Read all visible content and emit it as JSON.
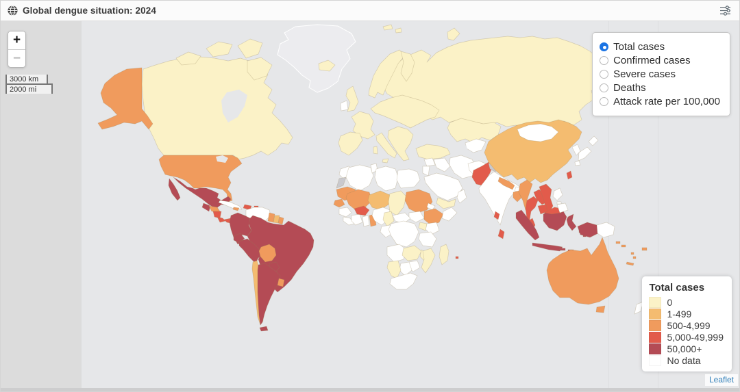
{
  "header": {
    "title": "Global dengue situation: 2024",
    "globe_icon": "globe-icon",
    "settings_icon": "sliders-icon"
  },
  "zoom_control": {
    "zoom_in": "+",
    "zoom_out": "−",
    "zoom_out_disabled": true
  },
  "scale_control": {
    "km": "3000 km",
    "mi": "2000 mi"
  },
  "layer_control": {
    "options": [
      {
        "label": "Total cases",
        "selected": true
      },
      {
        "label": "Confirmed cases",
        "selected": false
      },
      {
        "label": "Severe cases",
        "selected": false
      },
      {
        "label": "Deaths",
        "selected": false
      },
      {
        "label": "Attack rate per 100,000",
        "selected": false
      }
    ],
    "accent_color": "#1B74E4"
  },
  "legend": {
    "title": "Total cases",
    "items": [
      {
        "label": "0",
        "class": "c0"
      },
      {
        "label": "1-499",
        "class": "c1"
      },
      {
        "label": "500-4,999",
        "class": "c2"
      },
      {
        "label": "5,000-49,999",
        "class": "c3"
      },
      {
        "label": "50,000+",
        "class": "c4"
      },
      {
        "label": "No data",
        "class": "nodata"
      }
    ]
  },
  "attribution": {
    "label": "Leaflet"
  },
  "map": {
    "colors": {
      "c0": "#FBF2C7",
      "c1": "#F4BC70",
      "c2": "#F09B5D",
      "c3": "#E25B4B",
      "c4": "#B44B55",
      "nodata": "#FFFFFF",
      "basemap": "#ECECEF",
      "disputed": "#C9C9CE",
      "water": "#E6E7E9",
      "ocean": "#E6E7E9",
      "outside": "#DCDCDC"
    },
    "region_classes": {
      "greenland": "basemap",
      "hudson-bay": "water",
      "great-lakes": "water",
      "caspian-sea": "water",
      "black-sea": "water",
      "russia": "c0",
      "canada": "c0",
      "arctic-island-1": "c0",
      "arctic-island-2": "c0",
      "arctic-island-3": "c0",
      "baffin-island": "c0",
      "svalbard-1": "c0",
      "svalbard-2": "c0",
      "novaya-zemlya": "c0",
      "alaska": "c2",
      "usa": "c2",
      "mexico": "c4",
      "baja-california": "c4",
      "guatemala": "c4",
      "honduras": "c2",
      "nicaragua": "c3",
      "costa-rica": "c3",
      "panama": "c3",
      "cuba": "nodata",
      "hispaniola": "c3",
      "jamaica": "c2",
      "puerto-rico": "c3",
      "trinidad": "c3",
      "colombia": "c4",
      "venezuela": "nodata",
      "guyana": "c2",
      "suriname": "c1",
      "french-guiana": "c2",
      "ecuador": "c4",
      "peru": "c4",
      "brazil": "c4",
      "bolivia": "c2",
      "paraguay": "c4",
      "chile": "c1",
      "argentina": "c4",
      "uruguay": "c2",
      "tierra-del-fuego": "c4",
      "iceland": "c0",
      "uk": "c0",
      "ireland": "nodata",
      "scandinavia": "c0",
      "finland": "c0",
      "iberia": "c0",
      "france": "c0",
      "central-europe": "c0",
      "italy": "c0",
      "sicily": "c0",
      "sardinia": "c0",
      "balkans": "c0",
      "kazakhstan": "c0",
      "turkey": "c0",
      "central-asia": "nodata",
      "iran": "nodata",
      "iraq": "nodata",
      "syria": "nodata",
      "levant": "nodata",
      "saudi-arabia": "nodata",
      "yemen": "c0",
      "oman": "nodata",
      "afghanistan": "nodata",
      "pakistan": "c3",
      "kashmir": "disputed",
      "india": "nodata",
      "india-east-patch": "c3",
      "nepal": "c2",
      "bhutan": "nodata",
      "bangladesh": "c2",
      "sri-lanka": "c3",
      "china": "c1",
      "mongolia": "nodata",
      "korea": "nodata",
      "japan-north": "nodata",
      "japan-main": "nodata",
      "japan-kyushu": "nodata",
      "taiwan": "c3",
      "myanmar": "c2",
      "thailand": "c3",
      "laos": "c3",
      "vietnam": "c3",
      "cambodia": "c3",
      "malaysia": "c3",
      "borneo-malaysia": "c3",
      "singapore": "c4",
      "sumatra": "c4",
      "java": "c4",
      "borneo": "c4",
      "sulawesi": "c4",
      "sunda-1": "c4",
      "sunda-2": "c4",
      "sunda-3": "c4",
      "maluku-1": "c4",
      "maluku-2": "c4",
      "west-papua": "c4",
      "papua-new-guinea": "nodata",
      "luzon": "nodata",
      "visayas": "nodata",
      "mindanao": "nodata",
      "australia": "c2",
      "tasmania": "c2",
      "nz-north": "nodata",
      "nz-south": "nodata",
      "solomon-1": "c2",
      "solomon-2": "c2",
      "vanuatu-1": "c2",
      "vanuatu-2": "c2",
      "fiji": "c2",
      "new-caledonia": "c2",
      "mauritius": "c3",
      "morocco": "nodata",
      "western-sahara": "disputed",
      "algeria": "nodata",
      "tunisia": "nodata",
      "libya": "nodata",
      "egypt": "nodata",
      "mauritania": "c2",
      "mali": "c2",
      "senegal": "c2",
      "guinea": "nodata",
      "sierra-leone": "nodata",
      "ivory-coast": "nodata",
      "ghana": "nodata",
      "togo-benin": "c2",
      "burkina-faso": "c3",
      "niger": "c1",
      "nigeria": "nodata",
      "chad": "c0",
      "sudan": "c2",
      "eritrea": "nodata",
      "ethiopia": "c2",
      "somalia": "nodata",
      "south-sudan": "nodata",
      "kenya": "nodata",
      "uganda": "c0",
      "central-african-republic": "nodata",
      "cameroon": "c0",
      "gabon-congo": "nodata",
      "drc": "nodata",
      "tanzania": "nodata",
      "angola": "nodata",
      "zambia": "c0",
      "malawi": "c0",
      "mozambique": "c0",
      "zimbabwe": "nodata",
      "botswana": "nodata",
      "namibia": "c0",
      "south-africa": "nodata",
      "madagascar": "c0"
    }
  }
}
